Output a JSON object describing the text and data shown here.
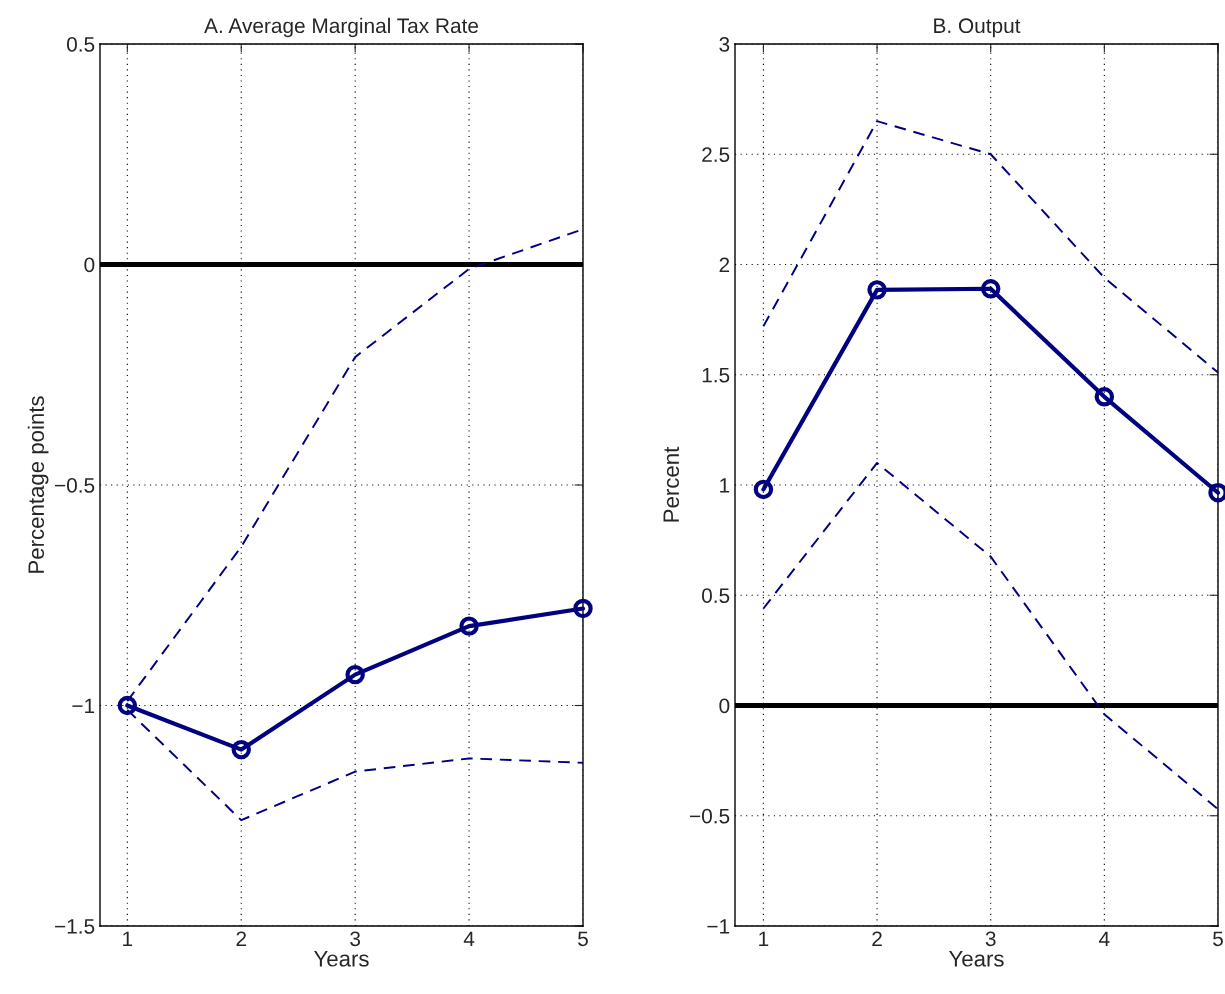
{
  "chart_data": [
    {
      "type": "line",
      "title": "A. Average Marginal Tax Rate",
      "xlabel": "Years",
      "ylabel": "Percentage points",
      "x": [
        1,
        2,
        3,
        4,
        5
      ],
      "xlim": [
        0.76,
        5
      ],
      "xticks": [
        1,
        2,
        3,
        4,
        5
      ],
      "ylim": [
        -1.5,
        0.5
      ],
      "yticks": [
        {
          "value": -1.5,
          "label": "−1.5"
        },
        {
          "value": -1,
          "label": "−1"
        },
        {
          "value": -0.5,
          "label": "−0.5"
        },
        0,
        0.5
      ],
      "grid": true,
      "ref_lines": [
        {
          "axis": "y",
          "value": 0,
          "color": "#000000",
          "line_style": "solid"
        }
      ],
      "series": [
        {
          "color": "#000080",
          "values": [
            -1.0,
            -1.1,
            -0.93,
            -0.82,
            -0.78
          ],
          "marker": "circle",
          "line_style": "solid"
        },
        {
          "color": "#000080",
          "values": [
            -0.99,
            -0.64,
            -0.21,
            -0.01,
            0.08
          ],
          "marker": "none",
          "line_style": "dashed"
        },
        {
          "color": "#000080",
          "values": [
            -1.01,
            -1.26,
            -1.15,
            -1.12,
            -1.13
          ],
          "marker": "none",
          "line_style": "dashed"
        }
      ]
    },
    {
      "type": "line",
      "title": "B. Output",
      "xlabel": "Years",
      "ylabel": "Percent",
      "x": [
        1,
        2,
        3,
        4,
        5
      ],
      "xlim": [
        0.75,
        5
      ],
      "xticks": [
        1,
        2,
        3,
        4,
        5
      ],
      "ylim": [
        -1,
        3
      ],
      "yticks": [
        {
          "value": -1,
          "label": "−1"
        },
        {
          "value": -0.5,
          "label": "−0.5"
        },
        0,
        0.5,
        1,
        1.5,
        2,
        2.5,
        3
      ],
      "grid": true,
      "ref_lines": [
        {
          "axis": "y",
          "value": 0,
          "color": "#000000",
          "line_style": "solid"
        }
      ],
      "series": [
        {
          "color": "#000080",
          "values": [
            0.98,
            1.885,
            1.89,
            1.4,
            0.965
          ],
          "marker": "circle",
          "line_style": "solid"
        },
        {
          "color": "#000080",
          "values": [
            1.72,
            2.65,
            2.5,
            1.94,
            1.51
          ],
          "marker": "none",
          "line_style": "dashed"
        },
        {
          "color": "#000080",
          "values": [
            0.44,
            1.1,
            0.675,
            -0.04,
            -0.47
          ],
          "marker": "none",
          "line_style": "dashed"
        }
      ]
    }
  ]
}
